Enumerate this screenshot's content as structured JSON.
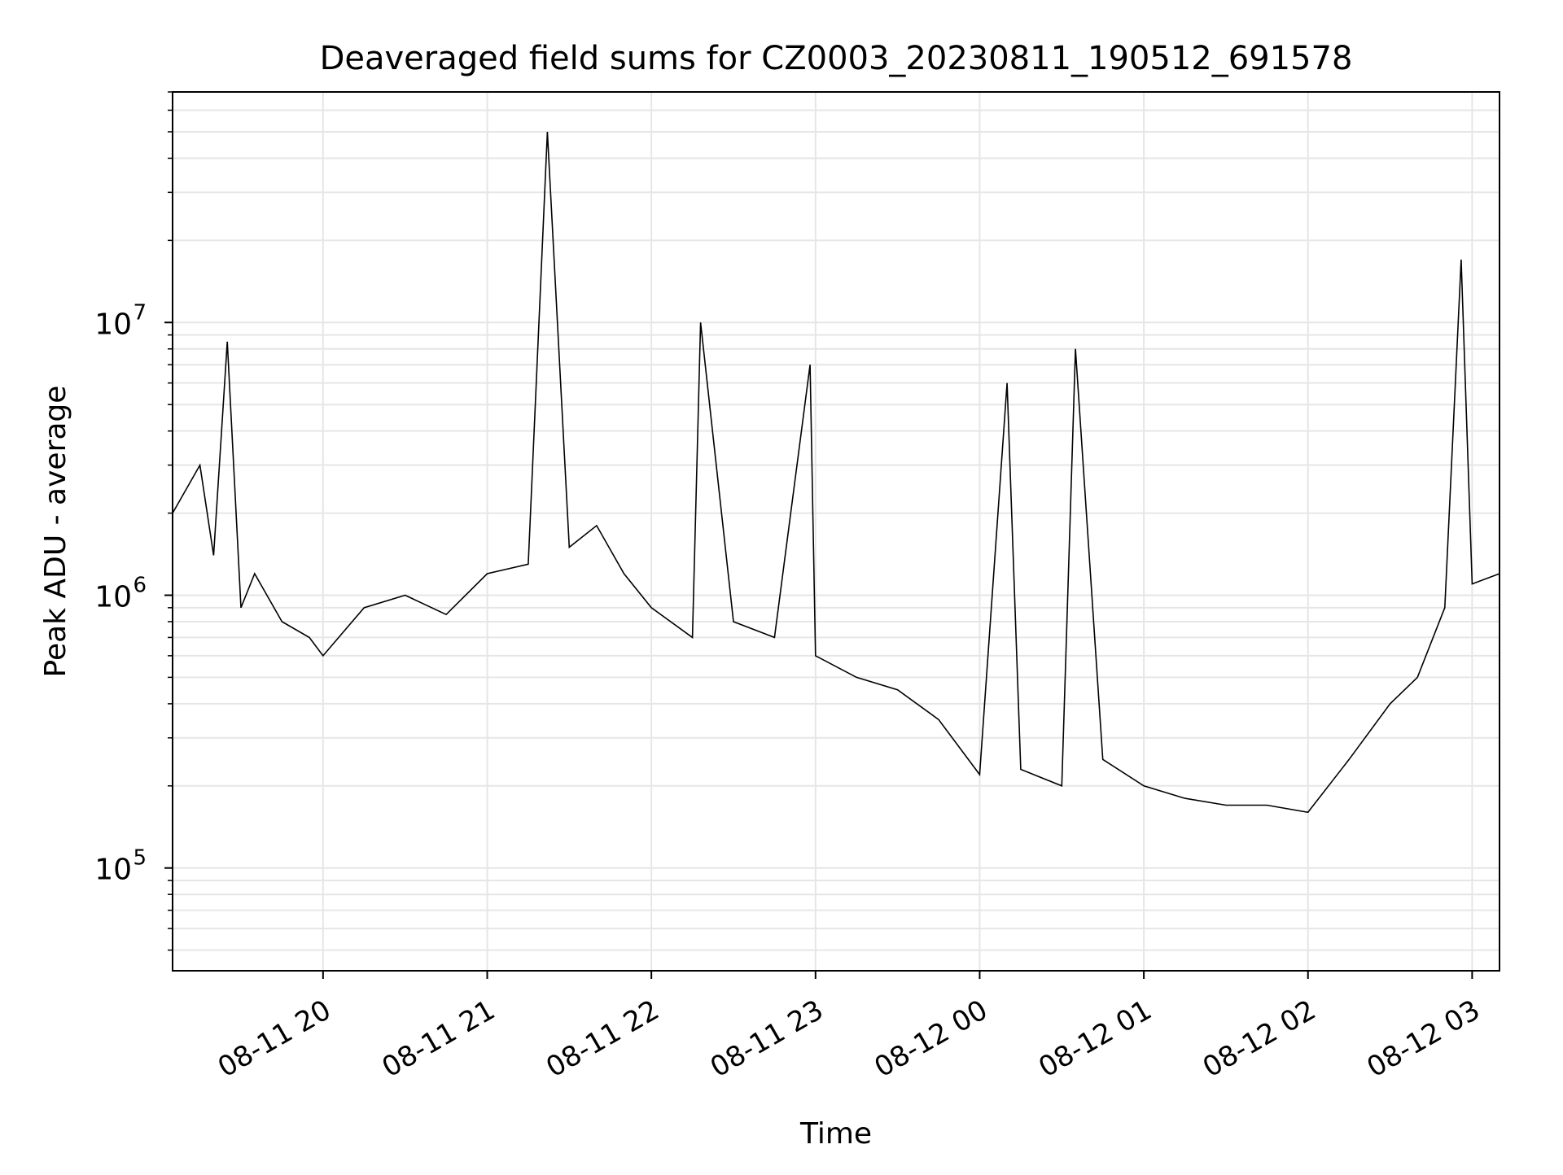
{
  "chart_data": {
    "type": "line",
    "title": "Deaveraged field sums for CZ0003_20230811_190512_691578",
    "xlabel": "Time",
    "ylabel": "Peak ADU - average",
    "yscale": "log",
    "ylim": [
      42000,
      70000000
    ],
    "xlim": [
      "2023-08-11 19:05",
      "2023-08-12 03:10"
    ],
    "grid": true,
    "x_tick_labels": [
      "08-11 20",
      "08-11 21",
      "08-11 22",
      "08-11 23",
      "08-12 00",
      "08-12 01",
      "08-12 02",
      "08-12 03"
    ],
    "y_tick_labels": [
      {
        "base": "10",
        "exp": "5"
      },
      {
        "base": "10",
        "exp": "6"
      },
      {
        "base": "10",
        "exp": "7"
      }
    ],
    "line_color": "#000000",
    "series": [
      {
        "x": [
          "2023-08-11 19:05",
          "2023-08-11 19:15",
          "2023-08-11 19:20",
          "2023-08-11 19:25",
          "2023-08-11 19:30",
          "2023-08-11 19:35",
          "2023-08-11 19:45",
          "2023-08-11 19:55",
          "2023-08-11 20:00",
          "2023-08-11 20:15",
          "2023-08-11 20:30",
          "2023-08-11 20:45",
          "2023-08-11 21:00",
          "2023-08-11 21:15",
          "2023-08-11 21:22",
          "2023-08-11 21:30",
          "2023-08-11 21:40",
          "2023-08-11 21:50",
          "2023-08-11 22:00",
          "2023-08-11 22:15",
          "2023-08-11 22:18",
          "2023-08-11 22:30",
          "2023-08-11 22:45",
          "2023-08-11 22:58",
          "2023-08-11 23:00",
          "2023-08-11 23:15",
          "2023-08-11 23:30",
          "2023-08-11 23:45",
          "2023-08-12 00:00",
          "2023-08-12 00:10",
          "2023-08-12 00:15",
          "2023-08-12 00:30",
          "2023-08-12 00:35",
          "2023-08-12 00:45",
          "2023-08-12 01:00",
          "2023-08-12 01:15",
          "2023-08-12 01:30",
          "2023-08-12 01:45",
          "2023-08-12 02:00",
          "2023-08-12 02:15",
          "2023-08-12 02:30",
          "2023-08-12 02:40",
          "2023-08-12 02:50",
          "2023-08-12 02:56",
          "2023-08-12 03:00",
          "2023-08-12 03:10"
        ],
        "y": [
          2000000,
          3000000,
          1400000,
          8500000,
          900000,
          1200000,
          800000,
          700000,
          600000,
          900000,
          1000000,
          850000,
          1200000,
          1300000,
          50000000,
          1500000,
          1800000,
          1200000,
          900000,
          700000,
          10000000,
          800000,
          700000,
          7000000,
          600000,
          500000,
          450000,
          350000,
          220000,
          6000000,
          230000,
          200000,
          8000000,
          250000,
          200000,
          180000,
          170000,
          170000,
          160000,
          250000,
          400000,
          500000,
          900000,
          17000000,
          1100000,
          1200000
        ]
      }
    ]
  }
}
